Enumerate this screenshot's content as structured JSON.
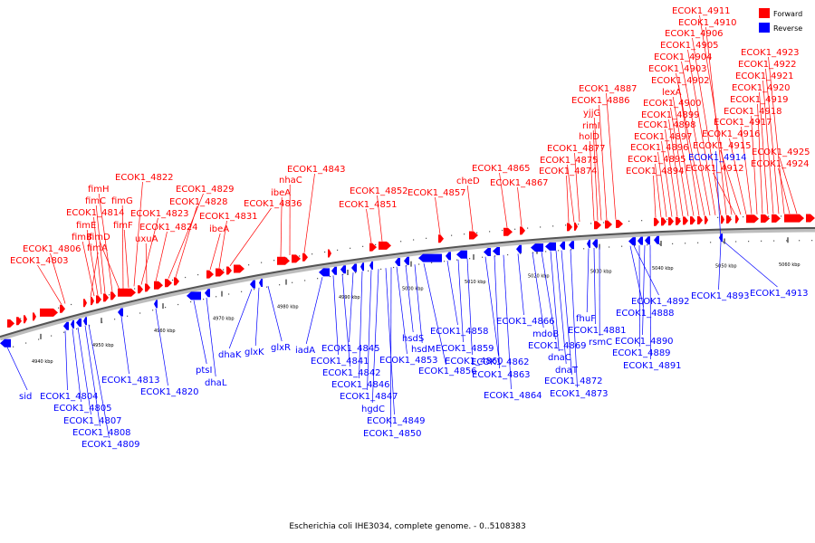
{
  "caption": "Escherichia coli IHE3034, complete genome. - 0..5108383",
  "legend": {
    "forward": {
      "label": "Forward",
      "color": "#ff0000"
    },
    "reverse": {
      "label": "Reverse",
      "color": "#0000ff"
    }
  },
  "ticks": [
    {
      "label": "4940 kbp"
    },
    {
      "label": "4950 kbp"
    },
    {
      "label": "4960 kbp"
    },
    {
      "label": "4970 kbp"
    },
    {
      "label": "4980 kbp"
    },
    {
      "label": "4990 kbp"
    },
    {
      "label": "5000 kbp"
    },
    {
      "label": "5010 kbp"
    },
    {
      "label": "5020 kbp"
    },
    {
      "label": "5030 kbp"
    },
    {
      "label": "5040 kbp"
    },
    {
      "label": "5050 kbp"
    },
    {
      "label": "5060 kbp"
    }
  ],
  "forward_labels": [
    "ECOK1_4803",
    "ECOK1_4806",
    "fimA",
    "fimB",
    "fimE",
    "ECOK1_4814",
    "fimC",
    "fimH",
    "fimD",
    "fimG",
    "fimF",
    "ECOK1_4822",
    "ECOK1_4823",
    "uxuA",
    "ECOK1_4824",
    "ECOK1_4829",
    "ECOK1_4828",
    "ibeA",
    "ECOK1_4831",
    "ECOK1_4836",
    "ibeA",
    "nhaC",
    "ECOK1_4843",
    "ECOK1_4851",
    "ECOK1_4852",
    "ECOK1_4857",
    "cheD",
    "ECOK1_4865",
    "ECOK1_4867",
    "ECOK1_4874",
    "ECOK1_4875",
    "ECOK1_4877",
    "holD",
    "rimI",
    "yjjG",
    "ECOK1_4886",
    "ECOK1_4887",
    "ECOK1_4894",
    "ECOK1_4895",
    "ECOK1_4896",
    "ECOK1_4897",
    "ECOK1_4898",
    "ECOK1_4899",
    "ECOK1_4900",
    "lexA",
    "ECOK1_4902",
    "ECOK1_4903",
    "ECOK1_4904",
    "ECOK1_4905",
    "ECOK1_4906",
    "ECOK1_4910",
    "ECOK1_4911",
    "ECOK1_4912",
    "ECOK1_4915",
    "ECOK1_4916",
    "ECOK1_4917",
    "ECOK1_4918",
    "ECOK1_4919",
    "ECOK1_4920",
    "ECOK1_4921",
    "ECOK1_4922",
    "ECOK1_4923",
    "ECOK1_4924",
    "ECOK1_4925"
  ],
  "reverse_labels": [
    "sid",
    "ECOK1_4804",
    "ECOK1_4805",
    "ECOK1_4807",
    "ECOK1_4808",
    "ECOK1_4809",
    "ECOK1_4813",
    "ECOK1_4820",
    "ptsI",
    "dhaL",
    "dhaK",
    "glxK",
    "glxR",
    "iadA",
    "ECOK1_4841",
    "ECOK1_4842",
    "ECOK1_4845",
    "ECOK1_4846",
    "ECOK1_4847",
    "hgdC",
    "ECOK1_4849",
    "ECOK1_4850",
    "ECOK1_4853",
    "hsdS",
    "hsdM",
    "ECOK1_4856",
    "ECOK1_4858",
    "ECOK1_4859",
    "ECOK1_4860",
    "ECOK1_4862",
    "ECOK1_4863",
    "ECOK1_4864",
    "ECOK1_4866",
    "mdoB",
    "ECOK1_4869",
    "dnaC",
    "dnaT",
    "ECOK1_4872",
    "ECOK1_4873",
    "fhuF",
    "ECOK1_4881",
    "rsmC",
    "ECOK1_4888",
    "ECOK1_4889",
    "ECOK1_4890",
    "ECOK1_4891",
    "ECOK1_4892",
    "ECOK1_4893",
    "ECOK1_4913",
    "ECOK1_4914"
  ]
}
